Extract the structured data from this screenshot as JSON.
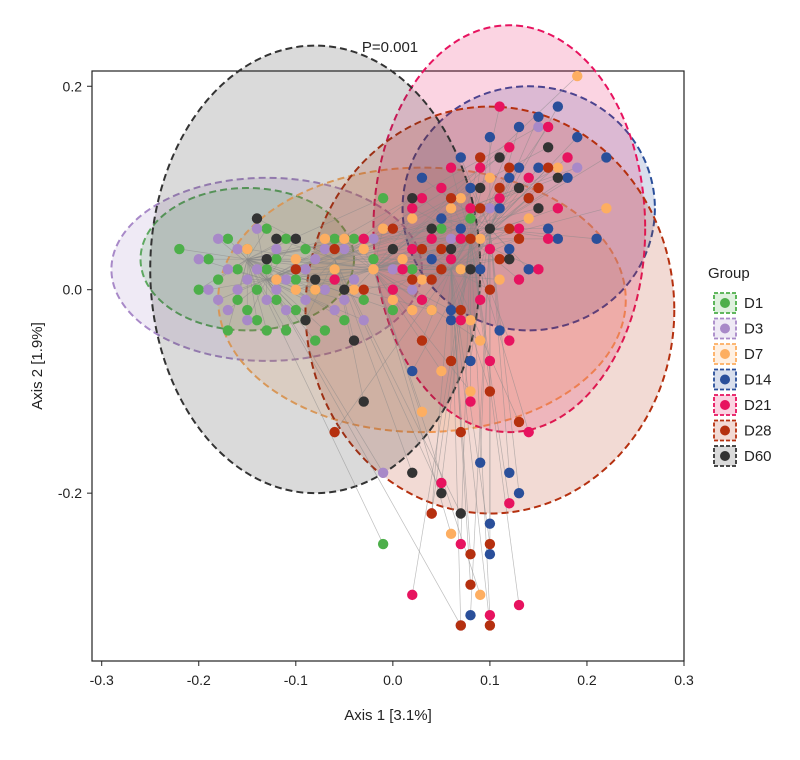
{
  "chart_data": {
    "type": "scatter",
    "title": "P=0.001",
    "xlabel": "Axis 1 [3.1%]",
    "ylabel": "Axis 2 [1.9%]",
    "xlim": [
      -0.31,
      0.3
    ],
    "ylim": [
      -0.365,
      0.215
    ],
    "xticks": [
      -0.3,
      -0.2,
      -0.1,
      0.0,
      0.1,
      0.2,
      0.3
    ],
    "xtick_labels": [
      "-0.3",
      "-0.2",
      "-0.1",
      "0.0",
      "0.1",
      "0.2",
      "0.3"
    ],
    "yticks": [
      -0.2,
      0.0,
      0.2
    ],
    "ytick_labels": [
      "-0.2",
      "0.0",
      "0.2"
    ],
    "grid": false,
    "legend_title": "Group",
    "legend_position": "right",
    "series": [
      {
        "name": "D1",
        "color": "#4daf4a",
        "centroid": [
          -0.15,
          0.03
        ],
        "ellipse": {
          "cx": -0.15,
          "cy": 0.03,
          "rx": 0.11,
          "ry": 0.07
        },
        "points": [
          [
            -0.22,
            0.04
          ],
          [
            -0.19,
            0.03
          ],
          [
            -0.18,
            0.01
          ],
          [
            -0.17,
            0.05
          ],
          [
            -0.16,
            0.02
          ],
          [
            -0.16,
            -0.01
          ],
          [
            -0.15,
            0.04
          ],
          [
            -0.14,
            0.0
          ],
          [
            -0.14,
            -0.03
          ],
          [
            -0.13,
            0.06
          ],
          [
            -0.13,
            0.02
          ],
          [
            -0.12,
            -0.01
          ],
          [
            -0.12,
            0.03
          ],
          [
            -0.11,
            0.05
          ],
          [
            -0.1,
            -0.02
          ],
          [
            -0.1,
            0.01
          ],
          [
            -0.09,
            0.04
          ],
          [
            -0.09,
            -0.03
          ],
          [
            -0.08,
            0.0
          ],
          [
            -0.07,
            -0.04
          ],
          [
            -0.06,
            0.02
          ],
          [
            -0.05,
            -0.03
          ],
          [
            -0.04,
            0.05
          ],
          [
            -0.03,
            -0.01
          ],
          [
            -0.02,
            0.03
          ],
          [
            -0.01,
            0.09
          ],
          [
            0.0,
            -0.02
          ],
          [
            -0.01,
            -0.25
          ],
          [
            0.05,
            0.06
          ],
          [
            0.07,
            0.02
          ],
          [
            -0.17,
            -0.04
          ],
          [
            -0.15,
            -0.02
          ],
          [
            -0.13,
            -0.04
          ],
          [
            -0.11,
            -0.04
          ],
          [
            -0.08,
            -0.05
          ],
          [
            0.04,
            -0.02
          ],
          [
            0.08,
            0.07
          ],
          [
            -0.2,
            0.0
          ],
          [
            -0.06,
            0.05
          ],
          [
            0.02,
            0.02
          ]
        ]
      },
      {
        "name": "D3",
        "color": "#a889c8",
        "centroid": [
          -0.13,
          0.01
        ],
        "ellipse": {
          "cx": -0.13,
          "cy": 0.02,
          "rx": 0.16,
          "ry": 0.09
        },
        "points": [
          [
            -0.2,
            0.03
          ],
          [
            -0.19,
            0.0
          ],
          [
            -0.18,
            0.05
          ],
          [
            -0.17,
            0.02
          ],
          [
            -0.17,
            -0.02
          ],
          [
            -0.16,
            0.04
          ],
          [
            -0.15,
            0.01
          ],
          [
            -0.15,
            -0.03
          ],
          [
            -0.14,
            0.06
          ],
          [
            -0.14,
            0.02
          ],
          [
            -0.13,
            -0.01
          ],
          [
            -0.12,
            0.04
          ],
          [
            -0.12,
            0.0
          ],
          [
            -0.11,
            -0.02
          ],
          [
            -0.1,
            0.05
          ],
          [
            -0.1,
            0.02
          ],
          [
            -0.09,
            -0.01
          ],
          [
            -0.08,
            0.03
          ],
          [
            -0.07,
            0.0
          ],
          [
            -0.06,
            -0.02
          ],
          [
            -0.05,
            0.04
          ],
          [
            -0.04,
            0.01
          ],
          [
            -0.03,
            -0.03
          ],
          [
            -0.02,
            0.05
          ],
          [
            0.0,
            0.02
          ],
          [
            0.02,
            0.0
          ],
          [
            0.04,
            0.03
          ],
          [
            0.07,
            -0.33
          ],
          [
            -0.01,
            -0.18
          ],
          [
            0.19,
            0.12
          ],
          [
            -0.18,
            -0.01
          ],
          [
            -0.16,
            0.0
          ],
          [
            -0.13,
            0.03
          ],
          [
            -0.11,
            0.01
          ],
          [
            -0.09,
            0.02
          ],
          [
            -0.07,
            0.04
          ],
          [
            -0.05,
            -0.01
          ],
          [
            0.06,
            0.05
          ],
          [
            0.1,
            0.08
          ],
          [
            0.15,
            0.16
          ]
        ]
      },
      {
        "name": "D7",
        "color": "#fdae61",
        "centroid": [
          -0.02,
          0.02
        ],
        "ellipse": {
          "cx": 0.03,
          "cy": -0.01,
          "rx": 0.21,
          "ry": 0.13
        },
        "points": [
          [
            -0.15,
            0.04
          ],
          [
            -0.12,
            0.01
          ],
          [
            -0.1,
            0.03
          ],
          [
            -0.08,
            0.0
          ],
          [
            -0.06,
            0.02
          ],
          [
            -0.05,
            0.05
          ],
          [
            -0.04,
            0.0
          ],
          [
            -0.02,
            0.02
          ],
          [
            -0.01,
            0.06
          ],
          [
            0.0,
            -0.01
          ],
          [
            0.01,
            0.03
          ],
          [
            0.02,
            0.07
          ],
          [
            0.03,
            0.01
          ],
          [
            0.04,
            -0.02
          ],
          [
            0.05,
            0.04
          ],
          [
            0.06,
            0.08
          ],
          [
            0.07,
            0.02
          ],
          [
            0.08,
            -0.03
          ],
          [
            0.09,
            0.05
          ],
          [
            0.1,
            0.11
          ],
          [
            0.11,
            0.01
          ],
          [
            0.12,
            0.14
          ],
          [
            0.13,
            0.05
          ],
          [
            0.15,
            0.1
          ],
          [
            0.17,
            0.12
          ],
          [
            0.19,
            0.21
          ],
          [
            0.22,
            0.08
          ],
          [
            0.05,
            -0.08
          ],
          [
            0.09,
            -0.05
          ],
          [
            0.03,
            -0.12
          ],
          [
            0.02,
            -0.02
          ],
          [
            -0.07,
            0.05
          ],
          [
            -0.03,
            0.04
          ],
          [
            0.07,
            0.09
          ],
          [
            0.14,
            0.07
          ],
          [
            0.08,
            -0.1
          ],
          [
            0.06,
            -0.24
          ],
          [
            0.09,
            -0.3
          ],
          [
            -0.1,
            -0.0
          ],
          [
            0.11,
            0.03
          ]
        ]
      },
      {
        "name": "D14",
        "color": "#2a4f9a",
        "centroid": [
          0.1,
          0.06
        ],
        "ellipse": {
          "cx": 0.14,
          "cy": 0.08,
          "rx": 0.13,
          "ry": 0.12
        },
        "points": [
          [
            0.02,
            -0.08
          ],
          [
            0.04,
            0.03
          ],
          [
            0.06,
            -0.02
          ],
          [
            0.07,
            0.06
          ],
          [
            0.08,
            0.1
          ],
          [
            0.09,
            0.02
          ],
          [
            0.1,
            0.15
          ],
          [
            0.11,
            0.08
          ],
          [
            0.12,
            0.04
          ],
          [
            0.13,
            0.12
          ],
          [
            0.14,
            0.09
          ],
          [
            0.15,
            0.17
          ],
          [
            0.16,
            0.06
          ],
          [
            0.17,
            0.18
          ],
          [
            0.18,
            0.11
          ],
          [
            0.19,
            0.15
          ],
          [
            0.21,
            0.05
          ],
          [
            0.22,
            0.13
          ],
          [
            0.13,
            0.16
          ],
          [
            0.11,
            -0.04
          ],
          [
            0.09,
            -0.17
          ],
          [
            0.1,
            -0.23
          ],
          [
            0.12,
            -0.18
          ],
          [
            0.08,
            -0.32
          ],
          [
            0.06,
            -0.03
          ],
          [
            0.14,
            0.02
          ],
          [
            0.17,
            0.05
          ],
          [
            0.05,
            0.07
          ],
          [
            0.08,
            -0.07
          ],
          [
            0.13,
            -0.2
          ],
          [
            0.1,
            -0.26
          ],
          [
            0.03,
            0.11
          ],
          [
            0.15,
            0.12
          ],
          [
            0.12,
            0.11
          ],
          [
            0.07,
            0.13
          ]
        ]
      },
      {
        "name": "D21",
        "color": "#e7135f",
        "centroid": [
          0.08,
          0.05
        ],
        "ellipse": {
          "cx": 0.12,
          "cy": 0.06,
          "rx": 0.14,
          "ry": 0.2
        },
        "points": [
          [
            -0.06,
            0.01
          ],
          [
            -0.03,
            0.05
          ],
          [
            0.0,
            0.0
          ],
          [
            0.02,
            0.08
          ],
          [
            0.03,
            -0.01
          ],
          [
            0.04,
            0.05
          ],
          [
            0.05,
            0.1
          ],
          [
            0.06,
            0.03
          ],
          [
            0.07,
            -0.03
          ],
          [
            0.08,
            0.08
          ],
          [
            0.09,
            0.12
          ],
          [
            0.1,
            0.04
          ],
          [
            0.11,
            0.09
          ],
          [
            0.12,
            0.14
          ],
          [
            0.13,
            0.06
          ],
          [
            0.14,
            0.11
          ],
          [
            0.16,
            0.16
          ],
          [
            0.17,
            0.08
          ],
          [
            0.13,
            0.01
          ],
          [
            0.1,
            -0.07
          ],
          [
            0.08,
            -0.11
          ],
          [
            0.05,
            -0.19
          ],
          [
            0.02,
            -0.3
          ],
          [
            0.1,
            -0.32
          ],
          [
            0.13,
            -0.31
          ],
          [
            0.12,
            -0.21
          ],
          [
            0.07,
            -0.25
          ],
          [
            0.04,
            -0.22
          ],
          [
            0.01,
            0.02
          ],
          [
            0.06,
            0.12
          ],
          [
            0.11,
            0.18
          ],
          [
            0.18,
            0.13
          ],
          [
            0.15,
            0.02
          ],
          [
            0.14,
            -0.14
          ],
          [
            0.02,
            0.04
          ],
          [
            0.07,
            0.05
          ],
          [
            0.09,
            -0.01
          ],
          [
            0.03,
            0.09
          ],
          [
            0.16,
            0.05
          ],
          [
            0.12,
            -0.05
          ]
        ]
      },
      {
        "name": "D28",
        "color": "#b5300f",
        "centroid": [
          0.06,
          0.02
        ],
        "ellipse": {
          "cx": 0.1,
          "cy": -0.02,
          "rx": 0.19,
          "ry": 0.2
        },
        "points": [
          [
            -0.1,
            0.02
          ],
          [
            -0.06,
            0.04
          ],
          [
            -0.03,
            0.0
          ],
          [
            0.0,
            0.06
          ],
          [
            0.02,
            0.01
          ],
          [
            0.03,
            -0.05
          ],
          [
            0.05,
            0.04
          ],
          [
            0.06,
            0.09
          ],
          [
            0.07,
            -0.02
          ],
          [
            0.08,
            0.05
          ],
          [
            0.09,
            0.13
          ],
          [
            0.1,
            0.0
          ],
          [
            0.11,
            0.1
          ],
          [
            0.12,
            0.06
          ],
          [
            0.14,
            0.09
          ],
          [
            0.16,
            0.12
          ],
          [
            0.1,
            -0.1
          ],
          [
            0.07,
            -0.14
          ],
          [
            0.04,
            -0.22
          ],
          [
            0.08,
            -0.26
          ],
          [
            0.1,
            -0.25
          ],
          [
            0.08,
            -0.29
          ],
          [
            0.07,
            -0.33
          ],
          [
            0.1,
            -0.33
          ],
          [
            0.13,
            -0.13
          ],
          [
            -0.06,
            -0.14
          ],
          [
            0.05,
            0.02
          ],
          [
            0.06,
            -0.07
          ],
          [
            0.15,
            0.1
          ],
          [
            0.12,
            0.12
          ],
          [
            0.03,
            0.04
          ],
          [
            0.09,
            0.08
          ],
          [
            0.11,
            0.03
          ],
          [
            0.13,
            0.05
          ],
          [
            0.04,
            0.01
          ]
        ]
      },
      {
        "name": "D60",
        "color": "#333333",
        "centroid": [
          -0.06,
          0.03
        ],
        "ellipse": {
          "cx": -0.08,
          "cy": 0.02,
          "rx": 0.17,
          "ry": 0.22
        },
        "points": [
          [
            -0.14,
            0.07
          ],
          [
            -0.12,
            0.05
          ],
          [
            -0.1,
            0.05
          ],
          [
            -0.08,
            0.01
          ],
          [
            -0.04,
            -0.05
          ],
          [
            -0.03,
            -0.11
          ],
          [
            0.0,
            0.04
          ],
          [
            0.02,
            0.09
          ],
          [
            0.04,
            0.06
          ],
          [
            0.06,
            0.04
          ],
          [
            0.08,
            0.02
          ],
          [
            0.1,
            0.06
          ],
          [
            0.12,
            0.03
          ],
          [
            0.13,
            0.1
          ],
          [
            0.15,
            0.08
          ],
          [
            0.16,
            0.14
          ],
          [
            0.17,
            0.11
          ],
          [
            0.02,
            -0.18
          ],
          [
            0.05,
            -0.2
          ],
          [
            0.07,
            -0.22
          ],
          [
            -0.13,
            0.03
          ],
          [
            -0.09,
            -0.03
          ],
          [
            -0.05,
            0.0
          ],
          [
            0.09,
            0.1
          ],
          [
            0.11,
            0.13
          ]
        ]
      }
    ]
  }
}
